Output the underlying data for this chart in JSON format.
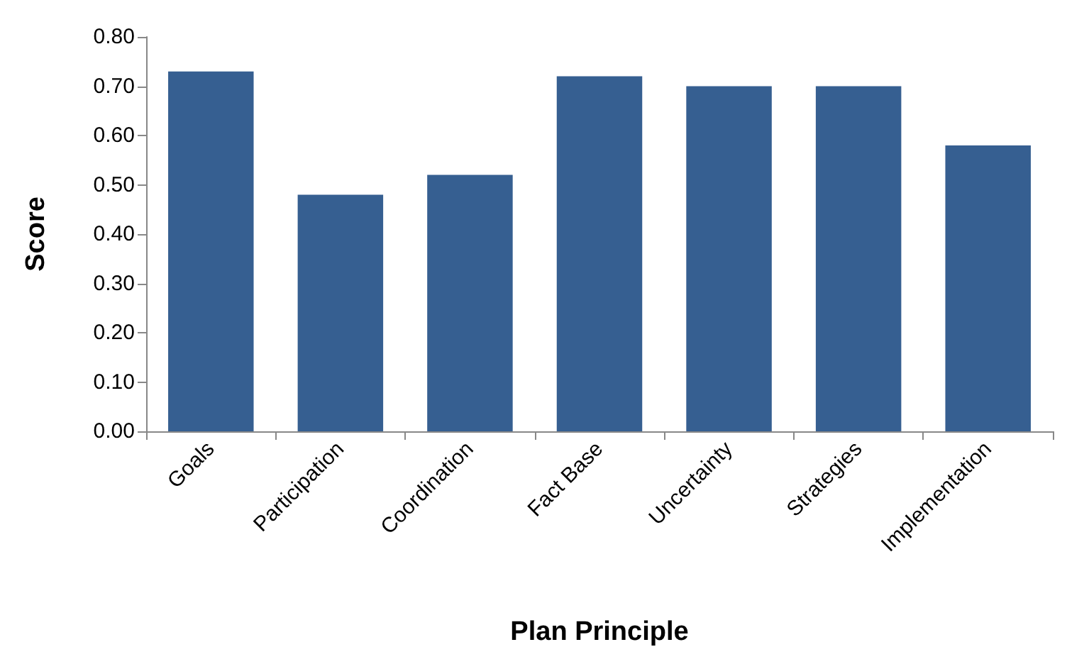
{
  "chart_data": {
    "type": "bar",
    "xlabel": "Plan Principle",
    "ylabel": "Score",
    "categories": [
      "Goals",
      "Participation",
      "Coordination",
      "Fact Base",
      "Uncertainty",
      "Strategies",
      "Implementation"
    ],
    "values": [
      0.73,
      0.48,
      0.52,
      0.72,
      0.7,
      0.7,
      0.58
    ],
    "color": "#365f91",
    "ylim": [
      0,
      0.8
    ],
    "yticks": [
      {
        "value": 0,
        "label": "0.00"
      },
      {
        "value": 0.1,
        "label": "0.10"
      },
      {
        "value": 0.2,
        "label": "0.20"
      },
      {
        "value": 0.3,
        "label": "0.30"
      },
      {
        "value": 0.4,
        "label": "0.40"
      },
      {
        "value": 0.5,
        "label": "0.50"
      },
      {
        "value": 0.6,
        "label": "0.60"
      },
      {
        "value": 0.7,
        "label": "0.70"
      },
      {
        "value": 0.8,
        "label": "0.80"
      }
    ],
    "grid": false
  }
}
